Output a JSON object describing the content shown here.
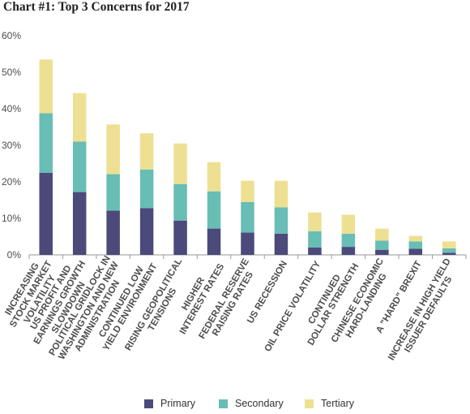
{
  "title": "Chart #1: Top 3 Concerns for 2017",
  "colors": {
    "primary": "#4b4a7a",
    "secondary": "#68bdb5",
    "tertiary": "#ede093",
    "axis": "#9a9a9a",
    "text": "#4d4d4d"
  },
  "chart_data": {
    "type": "bar",
    "stacked": true,
    "title": "Chart #1: Top 3 Concerns for 2017",
    "xlabel": "",
    "ylabel": "",
    "ylim": [
      0,
      60
    ],
    "yticks": [
      "0%",
      "10%",
      "20%",
      "30%",
      "40%",
      "50%",
      "60%"
    ],
    "grid": false,
    "legend_position": "bottom",
    "categories": [
      [
        "INCREASING",
        "STOCK MARKET",
        "VOLATILITY"
      ],
      [
        "US PROFIT AND",
        "EARNINGS GROWTH",
        "SLOWDOWN"
      ],
      [
        "POLITICAL GRIDLOCK IN",
        "WASHINGTON AND NEW",
        "ADMINISTRATION"
      ],
      [
        "CONTINUED LOW",
        "YIELD ENVIRONMENT"
      ],
      [
        "RISING GEOPOLITICAL",
        "TENSIONS"
      ],
      [
        "HIGHER",
        "INTEREST RATES"
      ],
      [
        "FEDERAL RESERVE",
        "RAISING RATES"
      ],
      [
        "US RECESSION"
      ],
      [
        "OIL PRICE VOLATILITY"
      ],
      [
        "CONTINUED",
        "DOLLAR STRENGTH"
      ],
      [
        "CHINESE ECONOMIC",
        "HARD-LANDING"
      ],
      [
        "A \"HARD\" BREXIT"
      ],
      [
        "INCREASE IN HIGH YIELD",
        "ISSUER DEFAULTS"
      ]
    ],
    "series": [
      {
        "name": "Primary",
        "values": [
          22.5,
          17.2,
          12.1,
          12.8,
          9.4,
          7.2,
          6.1,
          5.8,
          2.0,
          2.2,
          1.4,
          1.7,
          0.6
        ]
      },
      {
        "name": "Secondary",
        "values": [
          16.3,
          13.8,
          10.0,
          10.6,
          10.0,
          10.2,
          8.4,
          7.2,
          4.5,
          3.6,
          2.5,
          2.0,
          1.2
        ]
      },
      {
        "name": "Tertiary",
        "values": [
          14.7,
          13.3,
          13.6,
          9.9,
          11.1,
          8.0,
          5.8,
          7.3,
          5.1,
          5.2,
          3.3,
          1.5,
          1.9
        ]
      }
    ]
  }
}
